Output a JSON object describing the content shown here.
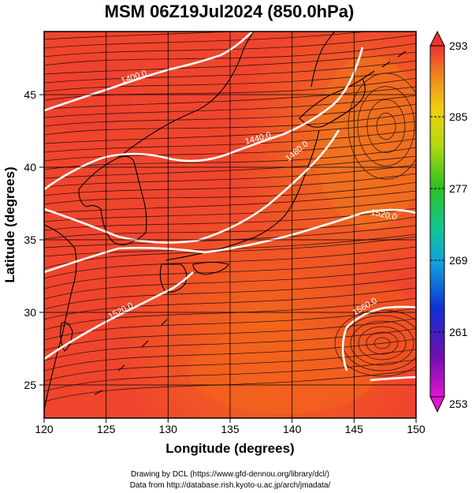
{
  "title": "MSM 06Z19Jul2024 (850.0hPa)",
  "xlabel": "Longitude (degrees)",
  "ylabel": "Latitude  (degrees)",
  "x_ticks": [
    "120",
    "125",
    "130",
    "135",
    "140",
    "145",
    "150"
  ],
  "y_ticks": [
    "25",
    "30",
    "35",
    "40",
    "45"
  ],
  "colorbar": {
    "ticks": [
      "293",
      "285",
      "277",
      "269",
      "261",
      "253"
    ],
    "min": 253,
    "max": 293
  },
  "contours": [
    {
      "label": "1400.0"
    },
    {
      "label": "1440.0"
    },
    {
      "label": "1480.0"
    },
    {
      "label": "1520.0"
    },
    {
      "label": "1520.0"
    },
    {
      "label": "1560.0"
    }
  ],
  "credits": {
    "line1": "Drawing by DCL (https://www.gfd-dennou.org/library/dcl/)",
    "line2": "Data from http://database.rish.kyoto-u.ac.jp/arch/jmadata/"
  },
  "colors": {
    "field_main": "#f0452d",
    "field_warm": "#f06a1e",
    "contour": "#ffffff",
    "coast": "#000000"
  }
}
